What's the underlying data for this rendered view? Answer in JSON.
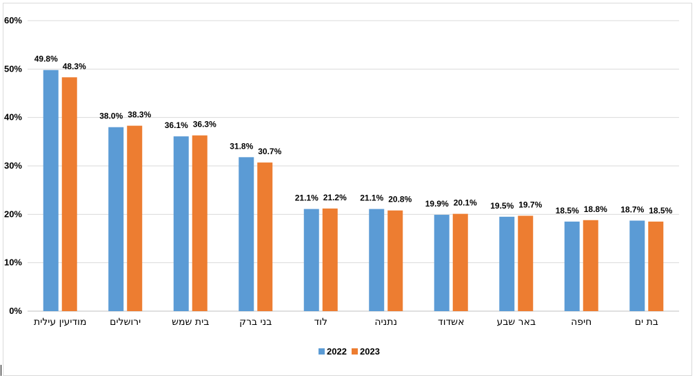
{
  "chart_data": {
    "type": "bar",
    "categories": [
      "מודיעין עילית",
      "ירושלים",
      "בית שמש",
      "בני ברק",
      "לוד",
      "נתניה",
      "אשדוד",
      "באר שבע",
      "חיפה",
      "בת ים"
    ],
    "series": [
      {
        "name": "2022",
        "color": "#5b9bd5",
        "values": [
          49.8,
          38.0,
          36.1,
          31.8,
          21.1,
          21.1,
          19.9,
          19.5,
          18.5,
          18.7
        ],
        "labels": [
          "49.8%",
          "38.0%",
          "36.1%",
          "31.8%",
          "21.1%",
          "21.1%",
          "19.9%",
          "19.5%",
          "18.5%",
          "18.7%"
        ]
      },
      {
        "name": "2023",
        "color": "#ed7d31",
        "values": [
          48.3,
          38.3,
          36.3,
          30.7,
          21.2,
          20.8,
          20.1,
          19.7,
          18.8,
          18.5
        ],
        "labels": [
          "48.3%",
          "38.3%",
          "36.3%",
          "30.7%",
          "21.2%",
          "20.8%",
          "20.1%",
          "19.7%",
          "18.8%",
          "18.5%"
        ]
      }
    ],
    "yticks": [
      "0%",
      "10%",
      "20%",
      "30%",
      "40%",
      "50%",
      "60%"
    ],
    "ylim": [
      0,
      60
    ],
    "grid": true,
    "legend_position": "bottom",
    "title": "",
    "xlabel": "",
    "ylabel": ""
  }
}
